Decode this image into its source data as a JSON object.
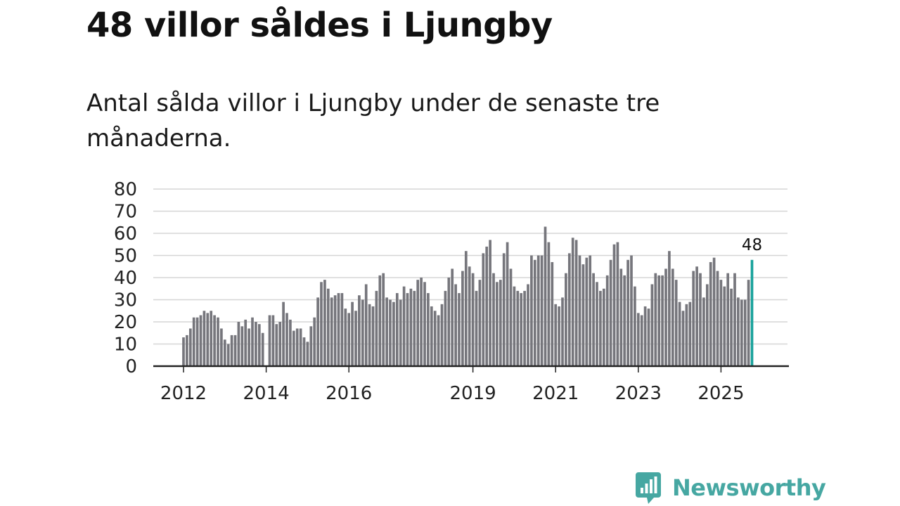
{
  "header": {
    "title": "48 villor såldes i Ljungby",
    "subtitle": "Antal sålda villor i Ljungby under de senaste tre månaderna."
  },
  "brand": {
    "name": "Newsworthy",
    "color": "#46a7a2",
    "icon": "newsworthy-logo-icon"
  },
  "colors": {
    "bar": "#76767c",
    "highlight": "#1aa39c",
    "grid": "#d6d6d6",
    "axis": "#222222"
  },
  "chart_data": {
    "type": "bar",
    "title": "Antal sålda villor i Ljungby under de senaste tre månaderna.",
    "xlabel": "",
    "ylabel": "",
    "ylim": [
      0,
      80
    ],
    "yticks": [
      0,
      10,
      20,
      30,
      40,
      50,
      60,
      70,
      80
    ],
    "start": {
      "year": 2012,
      "month": 1
    },
    "xtick_labels": [
      "2012",
      "2014",
      "2016",
      "2019",
      "2021",
      "2023",
      "2025"
    ],
    "grid": true,
    "highlight_last": true,
    "last_value_label": "48",
    "values": [
      13,
      14,
      17,
      22,
      22,
      23,
      25,
      24,
      25,
      23,
      22,
      17,
      12,
      10,
      14,
      14,
      20,
      18,
      21,
      17,
      22,
      20,
      19,
      15,
      null,
      23,
      23,
      19,
      20,
      29,
      24,
      21,
      16,
      17,
      17,
      13,
      11,
      18,
      22,
      31,
      38,
      39,
      35,
      31,
      32,
      33,
      33,
      26,
      24,
      29,
      25,
      32,
      30,
      37,
      28,
      27,
      34,
      41,
      42,
      31,
      30,
      29,
      33,
      30,
      36,
      33,
      35,
      34,
      39,
      40,
      38,
      33,
      27,
      25,
      23,
      28,
      34,
      40,
      44,
      37,
      33,
      43,
      52,
      45,
      42,
      34,
      39,
      51,
      54,
      57,
      42,
      38,
      39,
      51,
      56,
      44,
      36,
      34,
      33,
      34,
      37,
      50,
      48,
      50,
      50,
      63,
      56,
      47,
      28,
      27,
      31,
      42,
      51,
      58,
      57,
      50,
      46,
      49,
      50,
      42,
      38,
      34,
      35,
      41,
      48,
      55,
      56,
      44,
      41,
      48,
      50,
      36,
      24,
      23,
      27,
      26,
      37,
      42,
      41,
      41,
      44,
      52,
      44,
      39,
      29,
      25,
      28,
      29,
      43,
      45,
      42,
      31,
      37,
      47,
      49,
      43,
      39,
      36,
      42,
      35,
      42,
      31,
      30,
      30,
      39,
      48
    ]
  }
}
